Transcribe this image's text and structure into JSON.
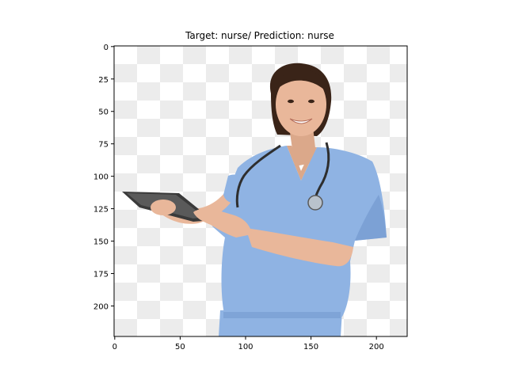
{
  "title": "Target: nurse/ Prediction: nurse",
  "image_axes": {
    "x_ticks": [
      0,
      50,
      100,
      150,
      200
    ],
    "y_ticks": [
      0,
      25,
      50,
      75,
      100,
      125,
      150,
      175,
      200
    ],
    "x_range": [
      0,
      224
    ],
    "y_range": [
      0,
      224
    ]
  },
  "colors": {
    "checker_light": "#ffffff",
    "checker_dark": "#ececec",
    "scrubs": "#8fb3e3",
    "scrubs_shadow": "#6f95cc",
    "skin": "#e9b79a",
    "hair": "#3a2418",
    "tablet": "#3a3a3a",
    "stethoscope": "#2e2e2e"
  }
}
